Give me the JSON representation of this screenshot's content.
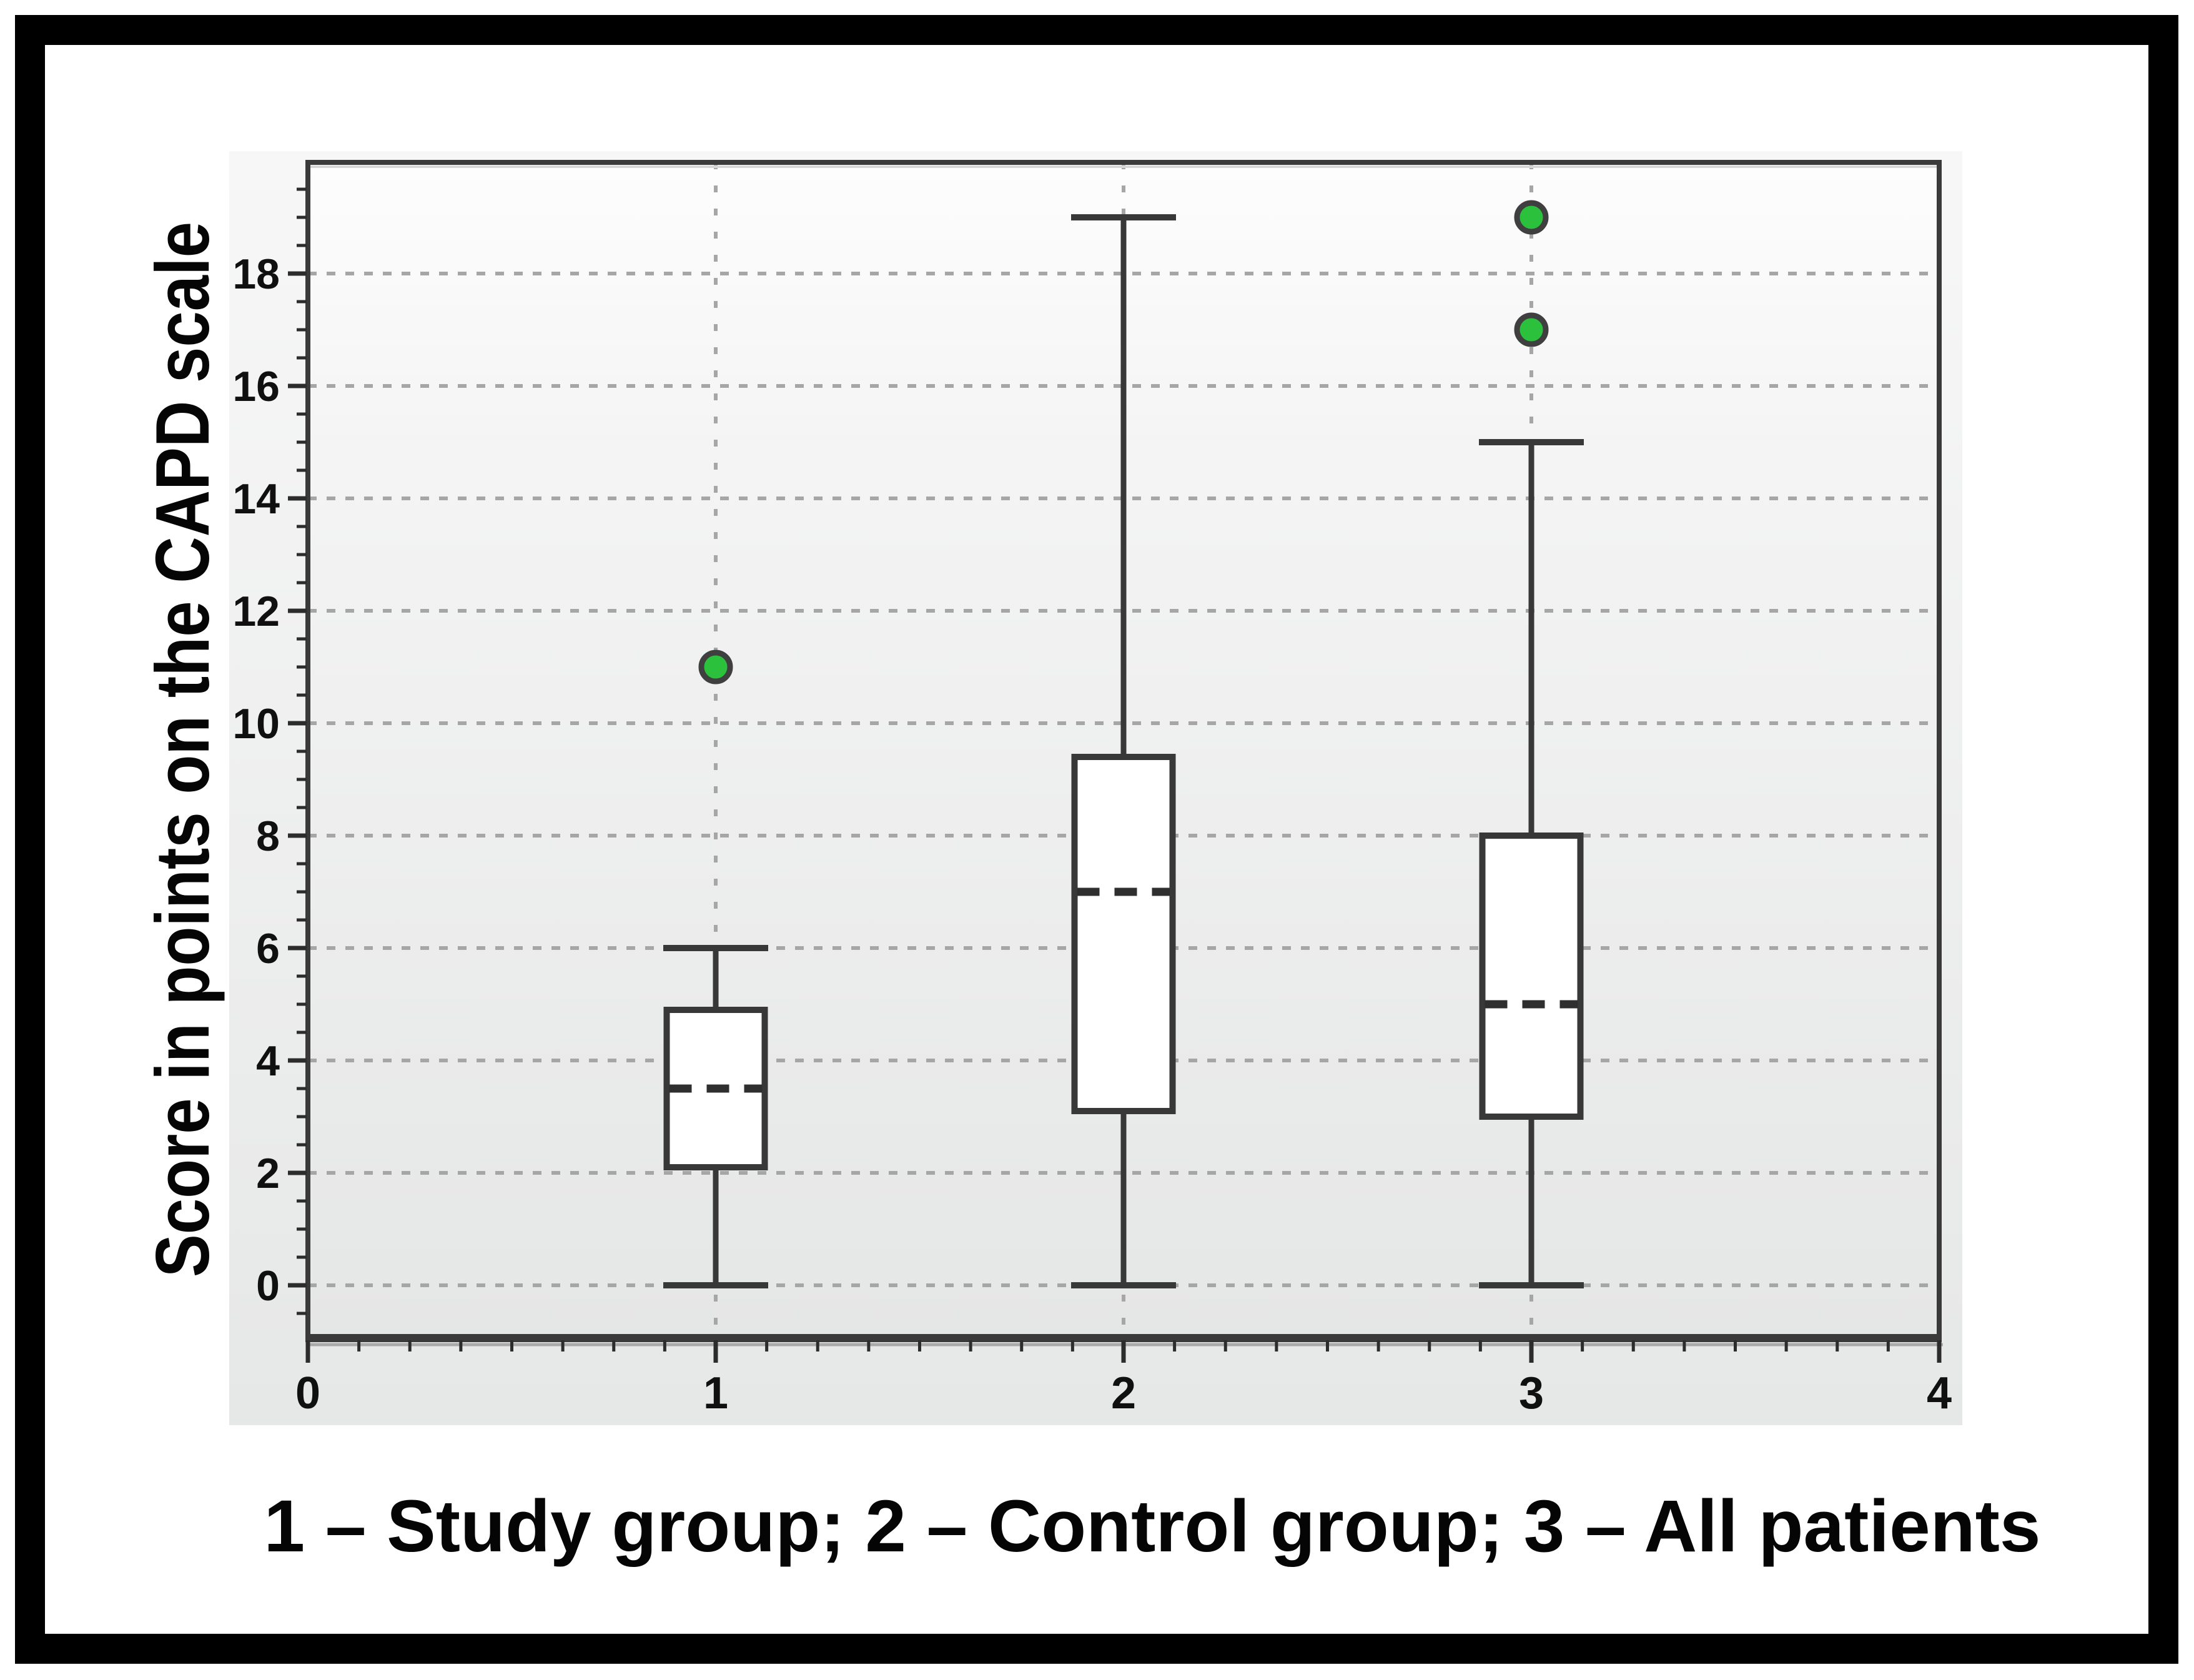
{
  "chart_data": {
    "type": "box",
    "title": "",
    "ylabel": "Score in points on the CAPD scale",
    "xlabel": "",
    "caption": "1 – Study group; 2 – Control group; 3 – All patients",
    "xlim": [
      0,
      4
    ],
    "ylim": [
      -0.9,
      20
    ],
    "grid": true,
    "legend": false,
    "x_axis": {
      "major_ticks": [
        0,
        1,
        2,
        3,
        4
      ],
      "minor_tick_step": 0.125
    },
    "y_axis": {
      "major_ticks": [
        0,
        2,
        4,
        6,
        8,
        10,
        12,
        14,
        16,
        18
      ],
      "minor_tick_step": 0.5,
      "minor_tick_min": -0.5,
      "minor_tick_max": 19.5
    },
    "groups": [
      {
        "x": 1,
        "label": "Study group",
        "whisker_low": 0,
        "q1": 2.1,
        "median": 3.5,
        "q3": 4.9,
        "whisker_high": 6,
        "outliers": [
          11
        ]
      },
      {
        "x": 2,
        "label": "Control group",
        "whisker_low": 0,
        "q1": 3.1,
        "median": 7,
        "q3": 9.4,
        "whisker_high": 19,
        "outliers": []
      },
      {
        "x": 3,
        "label": "All patients",
        "whisker_low": 0,
        "q1": 3,
        "median": 5,
        "q3": 8,
        "whisker_high": 15,
        "outliers": [
          17,
          19
        ]
      }
    ]
  },
  "colors": {
    "frame": "#000000",
    "panel_top": "#f7f7f7",
    "panel_bottom": "#e6e7e7",
    "plot_top": "#fdfdfd",
    "plot_bottom": "#e5e6e6",
    "plot_border": "#3a3a3a",
    "grid": "#a6a6a6",
    "box_stroke": "#383838",
    "box_fill": "#ffffff",
    "median": "#2f2f2f",
    "tick": "#2c2c2c",
    "tick_label": "#101010",
    "text": "#050505",
    "outlier_fill": "#2cc13c",
    "outlier_stroke": "#3f3f3f"
  }
}
